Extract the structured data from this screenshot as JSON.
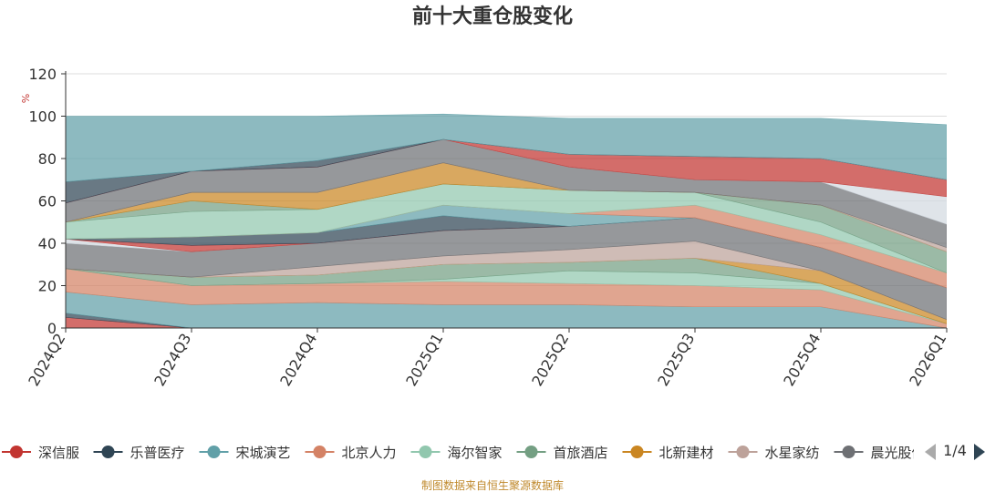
{
  "chart_data": {
    "type": "area",
    "title": "前十大重仓股变化",
    "ylabel": "%",
    "ylim": [
      0,
      120
    ],
    "yticks": [
      0,
      20,
      40,
      60,
      80,
      100,
      120
    ],
    "x": [
      "2024Q2",
      "2024Q3",
      "2024Q4",
      "2025Q1",
      "2025Q2",
      "2025Q3",
      "2025Q4",
      "2026Q1"
    ],
    "grid": true,
    "stacked": true,
    "series": [
      {
        "name": "深信服",
        "color": "#c23531",
        "values": [
          5,
          0,
          0,
          0,
          0,
          0,
          0,
          0
        ]
      },
      {
        "name": "乐普医疗",
        "color": "#2f4554",
        "values": [
          2,
          0,
          0,
          0,
          0,
          0,
          0,
          0
        ]
      },
      {
        "name": "宋城演艺",
        "color": "#61a0a8",
        "values": [
          10,
          11,
          12,
          11,
          11,
          10,
          10,
          0
        ]
      },
      {
        "name": "北京人力",
        "color": "#d48265",
        "values": [
          11,
          9,
          9,
          11,
          10,
          10,
          8,
          2
        ]
      },
      {
        "name": "海尔智家",
        "color": "#91c7ae",
        "values": [
          0,
          0,
          0,
          1,
          6,
          6,
          3,
          0
        ]
      },
      {
        "name": "首旅酒店",
        "color": "#749f83",
        "values": [
          0,
          4,
          4,
          7,
          4,
          7,
          0,
          0
        ]
      },
      {
        "name": "北新建材",
        "color": "#ca8622",
        "values": [
          0,
          0,
          0,
          0,
          0,
          0,
          6,
          2
        ]
      },
      {
        "name": "水星家纺",
        "color": "#bda29a",
        "values": [
          0,
          0,
          4,
          4,
          6,
          8,
          0,
          0
        ]
      },
      {
        "name": "晨光股份",
        "color": "#6e7074",
        "values": [
          12,
          12,
          11,
          12,
          11,
          11,
          11,
          15
        ]
      },
      {
        "name": "",
        "color": "#d3d9e1",
        "values": [
          2,
          0,
          0,
          0,
          0,
          0,
          0,
          0
        ]
      },
      {
        "name": "",
        "color": "#c23531",
        "values": [
          0,
          3,
          0,
          0,
          0,
          0,
          0,
          0
        ]
      },
      {
        "name": "",
        "color": "#2f4554",
        "values": [
          0,
          4,
          5,
          7,
          0,
          0,
          0,
          0
        ]
      },
      {
        "name": "",
        "color": "#61a0a8",
        "values": [
          0,
          0,
          0,
          5,
          6,
          0,
          0,
          0
        ]
      },
      {
        "name": "",
        "color": "#d48265",
        "values": [
          0,
          0,
          0,
          0,
          0,
          6,
          6,
          7
        ]
      },
      {
        "name": "",
        "color": "#91c7ae",
        "values": [
          8,
          12,
          11,
          10,
          11,
          6,
          6,
          0
        ]
      },
      {
        "name": "",
        "color": "#749f83",
        "values": [
          0,
          5,
          0,
          0,
          0,
          0,
          8,
          10
        ]
      },
      {
        "name": "",
        "color": "#ca8622",
        "values": [
          0,
          4,
          8,
          10,
          0,
          0,
          0,
          0
        ]
      },
      {
        "name": "",
        "color": "#bda29a",
        "values": [
          0,
          0,
          0,
          0,
          0,
          0,
          0,
          2
        ]
      },
      {
        "name": "",
        "color": "#6e7074",
        "values": [
          9,
          10,
          12,
          11,
          11,
          6,
          11,
          11
        ]
      },
      {
        "name": "",
        "color": "#d3d9e1",
        "values": [
          0,
          0,
          0,
          0,
          0,
          0,
          0,
          13
        ]
      },
      {
        "name": "",
        "color": "#c23531",
        "values": [
          0,
          0,
          0,
          0,
          6,
          11,
          11,
          8
        ]
      },
      {
        "name": "",
        "color": "#2f4554",
        "values": [
          10,
          0,
          3,
          0,
          0,
          0,
          0,
          0
        ]
      },
      {
        "name": "",
        "color": "#61a0a8",
        "values": [
          31,
          26,
          21,
          12,
          17,
          18,
          19,
          26
        ]
      }
    ]
  },
  "legend": {
    "items": [
      {
        "label": "深信服",
        "color": "#c23531"
      },
      {
        "label": "乐普医疗",
        "color": "#2f4554"
      },
      {
        "label": "宋城演艺",
        "color": "#61a0a8"
      },
      {
        "label": "北京人力",
        "color": "#d48265"
      },
      {
        "label": "海尔智家",
        "color": "#91c7ae"
      },
      {
        "label": "首旅酒店",
        "color": "#749f83"
      },
      {
        "label": "北新建材",
        "color": "#ca8622"
      },
      {
        "label": "水星家纺",
        "color": "#bda29a"
      },
      {
        "label": "晨光股份",
        "color": "#6e7074"
      }
    ],
    "page": "1/4",
    "prev_icon": "triangle-left-icon",
    "next_icon": "triangle-right-icon"
  },
  "footer": "制图数据来自恒生聚源数据库"
}
